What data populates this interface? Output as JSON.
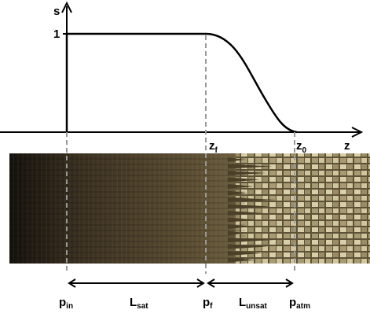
{
  "plot": {
    "y_axis_label": "s",
    "x_axis_label": "z",
    "y_tick": "1",
    "z_labels": [
      {
        "main": "z",
        "sub": "f"
      },
      {
        "main": "z",
        "sub": "0"
      }
    ]
  },
  "bottom_labels": {
    "points": [
      {
        "main": "p",
        "sub": "in"
      },
      {
        "main": "p",
        "sub": "f"
      },
      {
        "main": "p",
        "sub": "atm"
      }
    ],
    "lengths": [
      {
        "main": "L",
        "sub": "sat"
      },
      {
        "main": "L",
        "sub": "unsat"
      }
    ]
  }
}
